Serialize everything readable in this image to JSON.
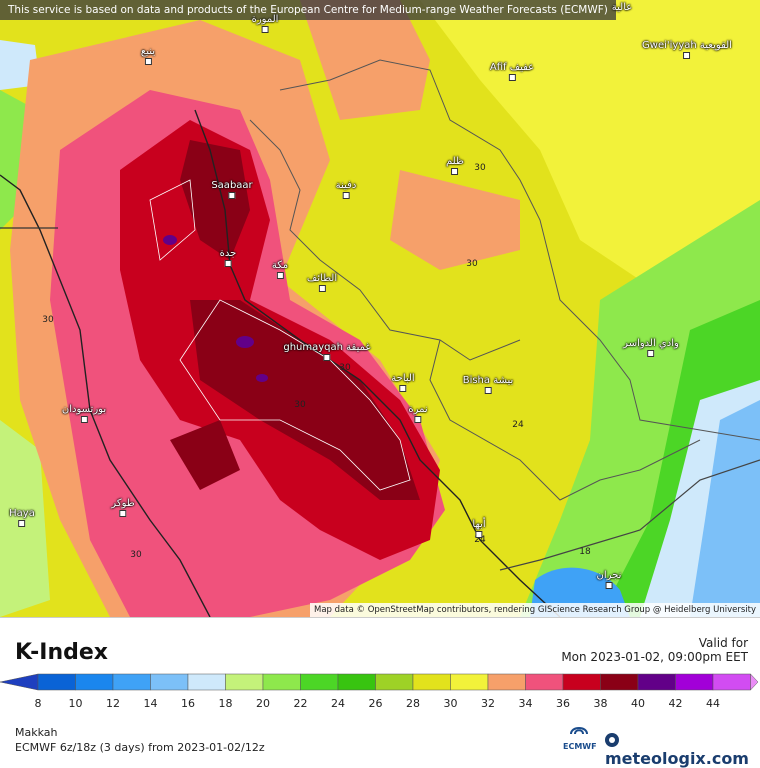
{
  "attribution_top": "This service is based on data and products of the European Centre for Medium-range Weather Forecasts (ECMWF)",
  "attribution_bottom": "Map data © OpenStreetMap contributors, rendering GIScience Research Group @ Heidelberg University",
  "parameter_title": "K-Index",
  "valid_label": "Valid for",
  "valid_date": "Mon 2023-01-02, 09:00pm EET",
  "location": "Makkah",
  "model_run": "ECMWF 6z/18z (3 days) from  2023-01-02/12z",
  "ecmwf_logo_text": "ECMWF",
  "brand": "meteologix.com",
  "colors": {
    "water_fill": "#5fa6e8",
    "scale": [
      "#1e3fbf",
      "#0a63d6",
      "#1a86ee",
      "#3fa2f6",
      "#7cc0f8",
      "#cfe9fb",
      "#c4f27a",
      "#8ee84c",
      "#4cd626",
      "#38c410",
      "#9ed226",
      "#e2e21c",
      "#f2f23a",
      "#f6a06a",
      "#f0527c",
      "#c8001e",
      "#8a0016",
      "#620088",
      "#a200d8",
      "#d24cf2",
      "#ea8cf6"
    ]
  },
  "scale_ticks": [
    "8",
    "10",
    "12",
    "14",
    "16",
    "18",
    "20",
    "22",
    "24",
    "26",
    "28",
    "30",
    "32",
    "34",
    "36",
    "38",
    "40",
    "42",
    "44"
  ],
  "contour_labels": [
    "30",
    "30",
    "30",
    "30",
    "24",
    "24",
    "18",
    "30",
    "30"
  ],
  "cities": [
    {
      "name": "المورة",
      "id": "al-mawrah"
    },
    {
      "name": "ينبع",
      "id": "yanbu"
    },
    {
      "name": "Saabaar",
      "id": "saabaar"
    },
    {
      "name": "جدة",
      "id": "jeddah"
    },
    {
      "name": "مكة",
      "id": "makkah"
    },
    {
      "name": "الطائف",
      "id": "taif"
    },
    {
      "name": "ghumayqah غميقة",
      "id": "ghumayqah"
    },
    {
      "name": "الباحة",
      "id": "al-bahah"
    },
    {
      "name": "Bisha بيشة",
      "id": "bisha"
    },
    {
      "name": "نمرة",
      "id": "namirah"
    },
    {
      "name": "Afif عفيف",
      "id": "afif"
    },
    {
      "name": "Gwei'iyyah القويعية",
      "id": "quwayiyah"
    },
    {
      "name": "ظلم",
      "id": "zalim"
    },
    {
      "name": "دفينة",
      "id": "dafinah"
    },
    {
      "name": "وادي الدواسر",
      "id": "wadi-dawasir"
    },
    {
      "name": "بورتسودان",
      "id": "port-sudan"
    },
    {
      "name": "طوكر",
      "id": "tokar"
    },
    {
      "name": "Haya",
      "id": "haya"
    },
    {
      "name": "أبها",
      "id": "abha"
    },
    {
      "name": "نجران",
      "id": "najran"
    },
    {
      "name": "عالية",
      "id": "aliyah"
    }
  ]
}
